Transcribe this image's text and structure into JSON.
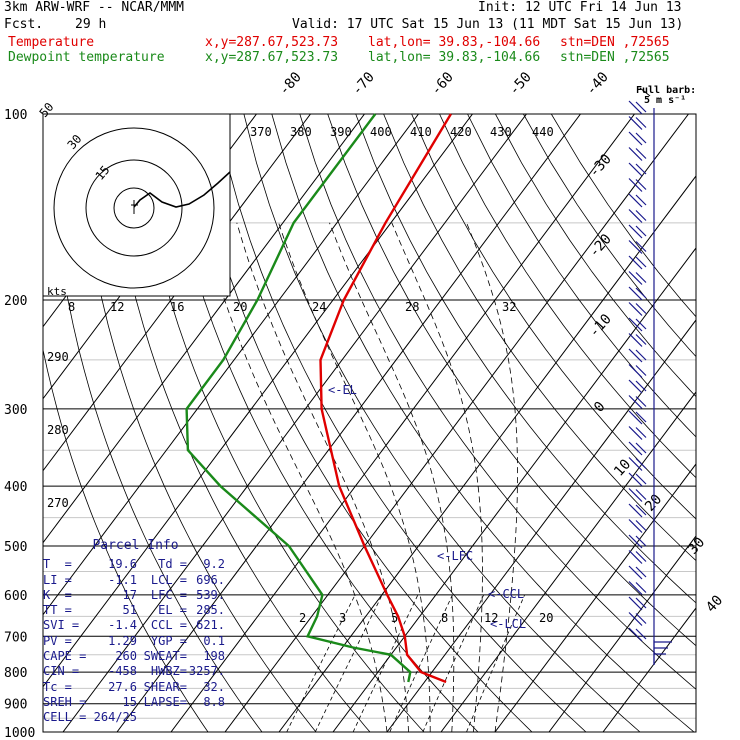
{
  "header": {
    "model": "3km ARW-WRF -- NCAR/MMM",
    "init": "Init: 12 UTC Fri 14 Jun 13",
    "fcst_label": "Fcst.",
    "fcst_value": "29 h",
    "valid": "Valid: 17 UTC Sat 15 Jun 13 (11 MDT Sat 15 Jun 13)",
    "temp_label": "Temperature",
    "dew_label": "Dewpoint temperature",
    "xy": "x,y=287.67,523.73",
    "latlon": "lat,lon= 39.83,-104.66",
    "stn": "stn=DEN ,72565"
  },
  "colors": {
    "temperature": "#e00000",
    "dewpoint": "#1a8a1a",
    "parcel_text": "#1a1a8c",
    "isotherm": "#000000",
    "barbs": "#1a1a8c"
  },
  "barb_legend": {
    "title": "Full barb:",
    "value": "5 m s⁻¹"
  },
  "annotations": {
    "el": "<-EL",
    "lfc": "<-LFC",
    "ccl": "<-CCL",
    "lcl": "<-LCL",
    "kts": "kts"
  },
  "parcel_info": {
    "title": "Parcel Info",
    "rows": [
      [
        "T  =",
        "19.6",
        "Td =",
        "9.2"
      ],
      [
        "LI =",
        "-1.1",
        "LCL =",
        "696."
      ],
      [
        "K  =",
        "17",
        "LFC =",
        "539."
      ],
      [
        "TT =",
        "51",
        "EL =",
        "285."
      ],
      [
        "SVI =",
        "-1.4",
        "CCL =",
        "621."
      ],
      [
        "PV =",
        "1.29",
        "YGP =",
        "0.1"
      ],
      [
        "CAPE =",
        "260",
        "SWEAT=",
        "198"
      ],
      [
        "CIN =",
        "-458",
        "HWBZ=",
        "3257."
      ],
      [
        "Tc =",
        "27.6",
        "SHEAR=",
        "32."
      ],
      [
        "SREH =",
        "15",
        "LAPSE=",
        "8.8"
      ],
      [
        "CELL =",
        "264/25",
        "",
        ""
      ]
    ]
  },
  "chart_data": {
    "type": "line",
    "title": "",
    "xlabel": "",
    "ylabel": "",
    "pressure_levels": [
      100,
      200,
      300,
      400,
      500,
      600,
      700,
      800,
      900,
      1000
    ],
    "isotherm_labels": [
      -80,
      -70,
      -60,
      -50,
      -40,
      -30,
      -20,
      -10,
      0,
      10,
      20,
      30,
      40
    ],
    "theta_labels": [
      370,
      380,
      390,
      400,
      410,
      420,
      430,
      440
    ],
    "mixing_ratio_labels": [
      2,
      3,
      5,
      8,
      12,
      20
    ],
    "theta_e_labels": [
      270,
      280,
      290
    ],
    "hodograph_rings": [
      15,
      30,
      50
    ],
    "hodograph_speed_ticks": [
      8,
      12,
      16,
      20,
      24,
      28,
      32
    ],
    "series": [
      {
        "name": "Temperature",
        "values": [
          [
            100,
            -64
          ],
          [
            150,
            -61
          ],
          [
            200,
            -58
          ],
          [
            250,
            -54
          ],
          [
            300,
            -47
          ],
          [
            400,
            -33
          ],
          [
            500,
            -20
          ],
          [
            600,
            -9
          ],
          [
            650,
            -4
          ],
          [
            700,
            0
          ],
          [
            750,
            3
          ],
          [
            800,
            8
          ],
          [
            830,
            14
          ]
        ]
      },
      {
        "name": "Dewpoint temperature",
        "values": [
          [
            100,
            -78
          ],
          [
            150,
            -78
          ],
          [
            200,
            -74
          ],
          [
            250,
            -72
          ],
          [
            300,
            -72
          ],
          [
            350,
            -66
          ],
          [
            400,
            -55
          ],
          [
            500,
            -34
          ],
          [
            600,
            -21
          ],
          [
            650,
            -19
          ],
          [
            700,
            -18
          ],
          [
            730,
            -8
          ],
          [
            750,
            0
          ],
          [
            800,
            6
          ],
          [
            830,
            7
          ]
        ]
      }
    ]
  }
}
